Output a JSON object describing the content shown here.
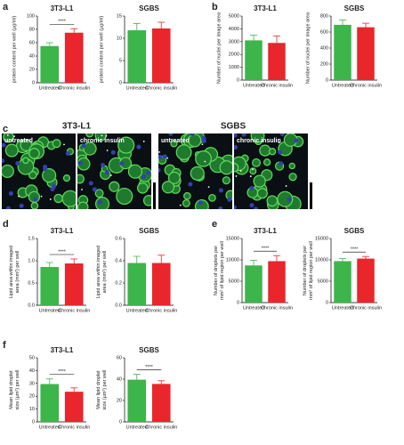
{
  "panels": [
    "a",
    "b",
    "c",
    "d",
    "e",
    "f"
  ],
  "images": {
    "groups": [
      {
        "title": "3T3-L1",
        "labels": [
          "untreated",
          "chronic insulin"
        ]
      },
      {
        "title": "SGBS",
        "labels": [
          "untreated",
          "chronic insulin"
        ]
      }
    ]
  },
  "chart_data": [
    {
      "type": "bar",
      "title": "3T3-L1",
      "ylabel": [
        "protein content per well (µg/ml)"
      ],
      "categories": [
        "Untreated",
        "Chronic insulin"
      ],
      "values": [
        55,
        75
      ],
      "errors": [
        5,
        6
      ],
      "colors": [
        "#3cb54a",
        "#e8262b"
      ],
      "ylim": [
        0,
        100
      ],
      "yticks": [
        0,
        20,
        40,
        60,
        80,
        100
      ],
      "annotation": "****"
    },
    {
      "type": "bar",
      "title": "SGBS",
      "ylabel": [
        "protein content per well (µg/ml)"
      ],
      "categories": [
        "Untreated",
        "Chronic insulin"
      ],
      "values": [
        11.8,
        12.2
      ],
      "errors": [
        1.5,
        1.4
      ],
      "colors": [
        "#3cb54a",
        "#e8262b"
      ],
      "ylim": [
        0,
        15
      ],
      "yticks": [
        0,
        5,
        10,
        15
      ]
    },
    {
      "type": "bar",
      "title": "3T3-L1",
      "ylabel": [
        "Number of nuclei per image area"
      ],
      "categories": [
        "Untreated",
        "Chronic insulin"
      ],
      "values": [
        3100,
        2900
      ],
      "errors": [
        400,
        550
      ],
      "colors": [
        "#3cb54a",
        "#e8262b"
      ],
      "ylim": [
        0,
        5000
      ],
      "yticks": [
        0,
        1000,
        2000,
        3000,
        4000,
        5000
      ]
    },
    {
      "type": "bar",
      "title": "SGBS",
      "ylabel": [
        "Number of nuclei per image area"
      ],
      "categories": [
        "Untreated",
        "Chronic insulin"
      ],
      "values": [
        690,
        660
      ],
      "errors": [
        60,
        50
      ],
      "colors": [
        "#3cb54a",
        "#e8262b"
      ],
      "ylim": [
        0,
        800
      ],
      "yticks": [
        0,
        200,
        400,
        600,
        800
      ]
    },
    {
      "type": "bar",
      "title": "3T3-L1",
      "ylabel": [
        "Lipid area within imaged",
        "area (mm²) per well"
      ],
      "categories": [
        "Untreated",
        "Chronic insulin"
      ],
      "values": [
        0.86,
        0.94
      ],
      "errors": [
        0.1,
        0.1
      ],
      "colors": [
        "#3cb54a",
        "#e8262b"
      ],
      "ylim": [
        0,
        1.5
      ],
      "yticks": [
        {
          "value": 0,
          "label": "0.0"
        },
        0.5,
        {
          "value": 1,
          "label": "1.0"
        },
        1.5
      ],
      "annotation": "****"
    },
    {
      "type": "bar",
      "title": "SGBS",
      "ylabel": [
        "Lipid area within imaged",
        "area (mm²) per well"
      ],
      "categories": [
        "Untreated",
        "Chronic insulin"
      ],
      "values": [
        0.38,
        0.38
      ],
      "errors": [
        0.06,
        0.07
      ],
      "colors": [
        "#3cb54a",
        "#e8262b"
      ],
      "ylim": [
        0,
        0.6
      ],
      "yticks": [
        {
          "value": 0,
          "label": "0.0"
        },
        0.2,
        0.4,
        0.6
      ]
    },
    {
      "type": "bar",
      "title": "3T3-L1",
      "ylabel": [
        "Number of droplets per",
        "mm² of lipid region per well"
      ],
      "categories": [
        "Untreated",
        "Chronic insulin"
      ],
      "values": [
        8700,
        9700
      ],
      "errors": [
        1200,
        1300
      ],
      "colors": [
        "#3cb54a",
        "#e8262b"
      ],
      "ylim": [
        0,
        15000
      ],
      "yticks": [
        0,
        5000,
        10000,
        15000
      ],
      "annotation": "****"
    },
    {
      "type": "bar",
      "title": "SGBS",
      "ylabel": [
        "Number of droplets per",
        "mm² of lipid region per well"
      ],
      "categories": [
        "Untreated",
        "Chronic insulin"
      ],
      "values": [
        9700,
        10300
      ],
      "errors": [
        600,
        500
      ],
      "colors": [
        "#3cb54a",
        "#e8262b"
      ],
      "ylim": [
        0,
        15000
      ],
      "yticks": [
        0,
        5000,
        10000,
        15000
      ],
      "annotation": "****"
    },
    {
      "type": "bar",
      "title": "3T3-L1",
      "ylabel": [
        "Mean lipid droplet",
        "size (µm²) per well"
      ],
      "categories": [
        "Untreated",
        "Chronic insulin"
      ],
      "values": [
        29.5,
        23.5
      ],
      "errors": [
        4,
        3
      ],
      "colors": [
        "#3cb54a",
        "#e8262b"
      ],
      "ylim": [
        0,
        50
      ],
      "yticks": [
        0,
        10,
        20,
        30,
        40,
        50
      ],
      "annotation": "****"
    },
    {
      "type": "bar",
      "title": "SGBS",
      "ylabel": [
        "Mean lipid droplet",
        "size (µm²) per well"
      ],
      "categories": [
        "Untreated",
        "Chronic insulin"
      ],
      "values": [
        39.5,
        35.5
      ],
      "errors": [
        5,
        3
      ],
      "colors": [
        "#3cb54a",
        "#e8262b"
      ],
      "ylim": [
        0,
        60
      ],
      "yticks": [
        0,
        20,
        40,
        60
      ],
      "annotation": "****"
    }
  ]
}
